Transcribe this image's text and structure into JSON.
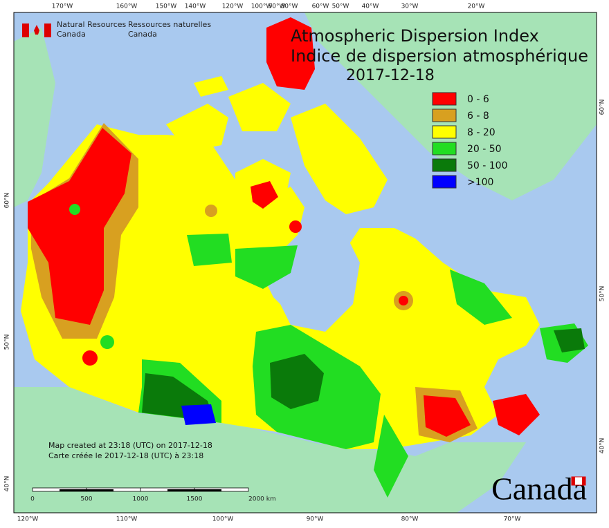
{
  "header": {
    "agency_en": [
      "Natural Resources",
      "Canada"
    ],
    "agency_fr": [
      "Ressources naturelles",
      "Canada"
    ],
    "title": [
      "Atmospheric Dispersion Index",
      "Indice de dispersion atmosphérique"
    ],
    "date": "2017-12-18"
  },
  "legend": [
    {
      "label": "0 - 6",
      "color": "#ff0000"
    },
    {
      "label": "6 - 8",
      "color": "#d8a020"
    },
    {
      "label": "8 - 20",
      "color": "#ffff00"
    },
    {
      "label": "20 - 50",
      "color": "#22dd22"
    },
    {
      "label": "50 - 100",
      "color": "#0a7a0a"
    },
    {
      "label": ">100",
      "color": "#0000ff"
    }
  ],
  "graticule": {
    "top": [
      "170°W",
      "160°W",
      "150°W",
      "140°W",
      "120°W",
      "100°W",
      "90°W",
      "80°W",
      "60°W",
      "50°W",
      "40°W",
      "30°W",
      "20°W"
    ],
    "bottom": [
      "120°W",
      "110°W",
      "100°W",
      "90°W",
      "80°W",
      "70°W"
    ],
    "left": [
      "60°N",
      "50°N",
      "40°N"
    ],
    "right": [
      "60°N",
      "50°N",
      "40°N"
    ]
  },
  "credits": [
    "Map created at 23:18 (UTC) on 2017-12-18",
    "Carte créée le 2017-12-18 (UTC) à 23:18"
  ],
  "scale_bar": [
    "0",
    "500",
    "1000",
    "1500",
    "2000 km"
  ],
  "wordmark": "Canada"
}
